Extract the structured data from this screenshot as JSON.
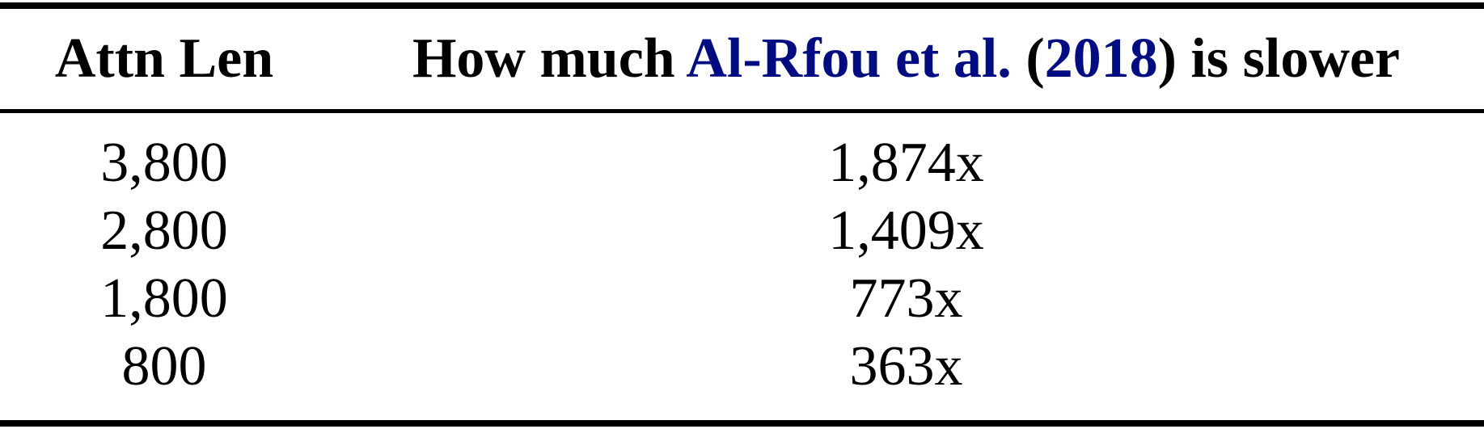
{
  "header": {
    "col1": "Attn Len",
    "col2_prefix": "How much ",
    "col2_cite_author": "Al-Rfou et al.",
    "col2_paren_open": " (",
    "col2_cite_year": "2018",
    "col2_suffix": ") is slower"
  },
  "rows": [
    {
      "attn_len": "3,800",
      "slowdown": "1,874x"
    },
    {
      "attn_len": "2,800",
      "slowdown": "1,409x"
    },
    {
      "attn_len": "1,800",
      "slowdown": "773x"
    },
    {
      "attn_len": "800",
      "slowdown": "363x"
    }
  ],
  "colors": {
    "text": "#000000",
    "citation": "#000c80",
    "rules": "#000000"
  }
}
